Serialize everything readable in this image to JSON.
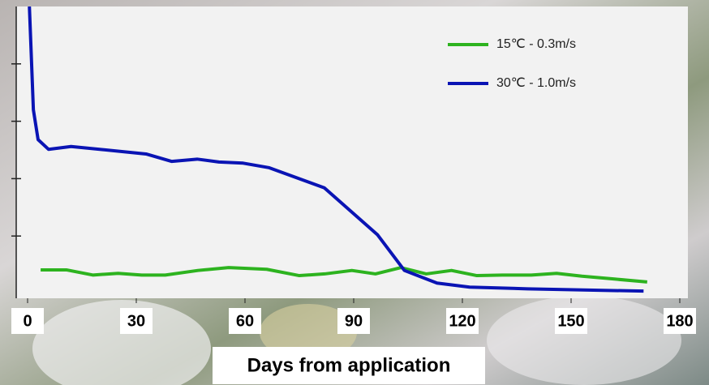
{
  "chart_data": {
    "type": "line",
    "x_label": "Days from application",
    "xlim": [
      0,
      180
    ],
    "xticks": [
      0,
      30,
      60,
      90,
      120,
      150,
      180
    ],
    "ylim": [
      0,
      5
    ],
    "yticks": [
      1,
      2,
      3,
      4
    ],
    "legend": "upper right",
    "series": [
      {
        "name": "15℃ - 0.3m/s",
        "color": "#2db31f",
        "x": [
          3.6,
          10.7,
          18,
          25,
          31.5,
          38,
          47,
          55.5,
          66,
          75,
          82,
          89.5,
          96,
          103,
          110,
          117,
          124,
          131,
          139,
          146,
          153,
          162,
          171
        ],
        "values": [
          0.41,
          0.41,
          0.32,
          0.35,
          0.32,
          0.32,
          0.4,
          0.45,
          0.42,
          0.31,
          0.34,
          0.4,
          0.34,
          0.45,
          0.34,
          0.4,
          0.31,
          0.32,
          0.32,
          0.35,
          0.3,
          0.25,
          0.2
        ]
      },
      {
        "name": "30℃ - 1.0m/s",
        "color": "#0a14b4",
        "x": [
          0.5,
          1.6,
          2.9,
          5.8,
          12,
          32.7,
          39.8,
          46.8,
          52.8,
          59.5,
          66.7,
          81.9,
          96.6,
          104,
          113,
          122,
          138,
          170
        ],
        "values": [
          5,
          3.2,
          2.68,
          2.51,
          2.56,
          2.43,
          2.3,
          2.34,
          2.29,
          2.27,
          2.19,
          1.84,
          1.02,
          0.4,
          0.18,
          0.11,
          0.08,
          0.04
        ]
      }
    ]
  }
}
